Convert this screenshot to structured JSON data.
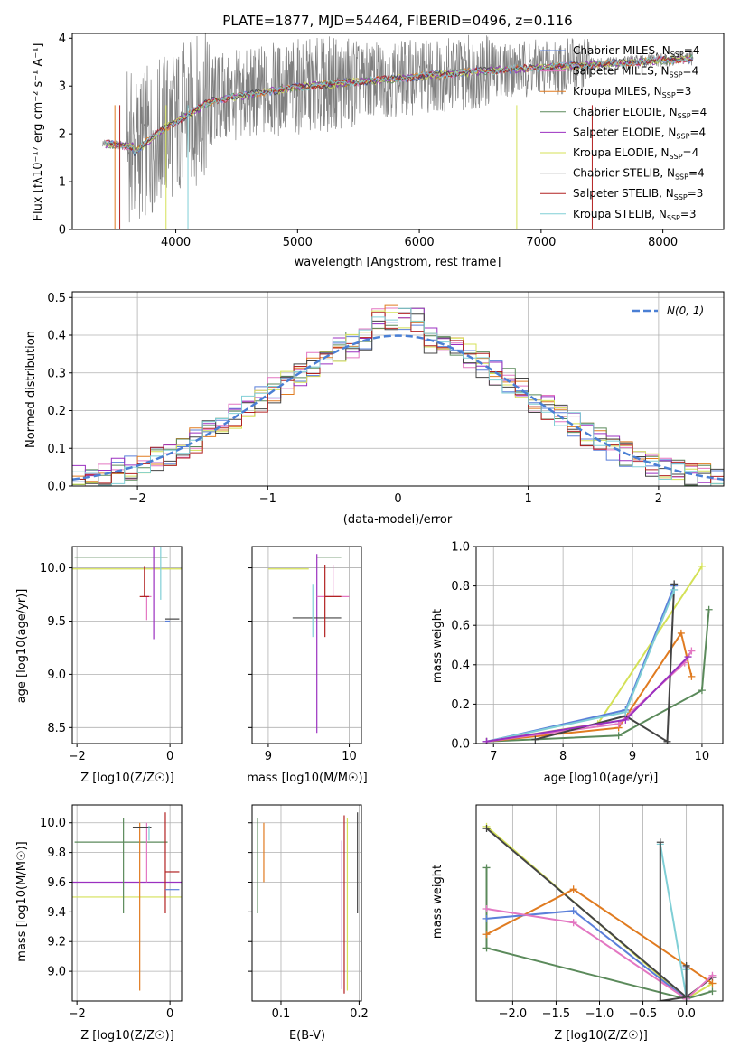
{
  "colors": {
    "chabrier_miles": "#5a7fd9",
    "salpeter_miles": "#e377c2",
    "kroupa_miles": "#e07b20",
    "chabrier_elodie": "#5b8a5b",
    "salpeter_elodie": "#9b30c0",
    "kroupa_elodie": "#d4e157",
    "chabrier_stelib": "#444444",
    "salpeter_stelib": "#b22222",
    "kroupa_stelib": "#80cfd6",
    "gaussian": "#4a7fd4"
  },
  "chart_data": [
    {
      "id": "spectrum",
      "type": "line",
      "title": "PLATE=1877, MJD=54464, FIBERID=0496, z=0.116",
      "xlabel": "wavelength [Angstrom, rest frame]",
      "ylabel": "Flux [fλ10⁻¹⁷ erg cm⁻² s⁻¹ A⁻¹]",
      "xlim": [
        3150,
        8500
      ],
      "ylim": [
        0,
        4.1
      ],
      "xticks": [
        4000,
        5000,
        6000,
        7000,
        8000
      ],
      "yticks": [
        0,
        1,
        2,
        3,
        4
      ],
      "spectrum_range": [
        3400,
        8250
      ],
      "legend": [
        {
          "key": "chabrier_miles",
          "text": "Chabrier MILES, N",
          "n": "4"
        },
        {
          "key": "salpeter_miles",
          "text": "Salpeter MILES, N",
          "n": "4"
        },
        {
          "key": "kroupa_miles",
          "text": "Kroupa MILES, N",
          "n": "3"
        },
        {
          "key": "chabrier_elodie",
          "text": "Chabrier ELODIE, N",
          "n": "4"
        },
        {
          "key": "salpeter_elodie",
          "text": "Salpeter ELODIE, N",
          "n": "4"
        },
        {
          "key": "kroupa_elodie",
          "text": "Kroupa ELODIE, N",
          "n": "4"
        },
        {
          "key": "chabrier_stelib",
          "text": "Chabrier STELIB, N",
          "n": "4"
        },
        {
          "key": "salpeter_stelib",
          "text": "Salpeter STELIB, N",
          "n": "3"
        },
        {
          "key": "kroupa_stelib",
          "text": "Kroupa STELIB, N",
          "n": "3"
        }
      ],
      "legend_sub": "SSP",
      "legend_placement": "right"
    },
    {
      "id": "hist",
      "type": "line",
      "xlabel": "(data-model)/error",
      "ylabel": "Normed distribution",
      "xlim": [
        -2.5,
        2.5
      ],
      "ylim": [
        0,
        0.515
      ],
      "xticks": [
        -2,
        -1,
        0,
        1,
        2
      ],
      "yticks": [
        0.0,
        0.1,
        0.2,
        0.3,
        0.4,
        0.5
      ],
      "gaussian_label": "N(0, 1)",
      "legend_placement": "top-right",
      "grid": true,
      "bin_width": 0.1
    },
    {
      "id": "age_vs_z",
      "type": "scatter",
      "xlabel": "Z [log10(Z/Z☉)]",
      "ylabel": "age  [log10(age/yr)]",
      "xlim": [
        -2.1,
        0.25
      ],
      "ylim": [
        8.35,
        10.2
      ],
      "xticks": [
        -2,
        0
      ],
      "yticks": [
        8.5,
        9.0,
        9.5,
        10.0
      ],
      "grid": true,
      "points": [
        {
          "key": "chabrier_elodie",
          "x": -1.05,
          "xerr": [
            1.0,
            1.0
          ],
          "y": 10.1,
          "yerr": [
            0.0,
            0.0
          ]
        },
        {
          "key": "kroupa_elodie",
          "x": -0.9,
          "xerr": [
            1.2,
            1.2
          ],
          "y": 9.99,
          "yerr": [
            0.0,
            0.0
          ]
        },
        {
          "key": "salpeter_miles",
          "x": -0.5,
          "xerr": [
            0.1,
            0.1
          ],
          "y": 9.73,
          "yerr": [
            0.22,
            0.0
          ]
        },
        {
          "key": "salpeter_stelib",
          "x": -0.55,
          "xerr": [
            0.1,
            0.1
          ],
          "y": 9.73,
          "yerr": [
            0.0,
            0.28
          ]
        },
        {
          "key": "salpeter_elodie",
          "x": -0.35,
          "xerr": [
            0.0,
            0.0
          ],
          "y": 9.73,
          "yerr": [
            0.4,
            1.28
          ]
        },
        {
          "key": "chabrier_stelib",
          "x": -0.1,
          "xerr": [
            0.0,
            0.3
          ],
          "y": 9.52,
          "yerr": [
            0.0,
            0.0
          ]
        },
        {
          "key": "chabrier_miles",
          "x": -0.1,
          "xerr": [
            0.0,
            0.1
          ],
          "y": 9.5,
          "yerr": [
            0.0,
            0.0
          ]
        },
        {
          "key": "kroupa_stelib",
          "x": -0.2,
          "xerr": [
            0.0,
            0.0
          ],
          "y": 9.9,
          "yerr": [
            0.2,
            0.55
          ]
        }
      ]
    },
    {
      "id": "age_vs_mass",
      "type": "scatter",
      "xlabel": "mass [log10(M/M☉)]",
      "xlim": [
        8.8,
        10.15
      ],
      "ylim": [
        8.35,
        10.2
      ],
      "xticks": [
        9,
        10
      ],
      "yticks": [
        8.5,
        9.0,
        9.5,
        10.0
      ],
      "grid": true,
      "points": [
        {
          "key": "kroupa_elodie",
          "x": 9.5,
          "xerr": [
            0.5,
            0.0
          ],
          "y": 9.99,
          "yerr": [
            0.0,
            0.0
          ]
        },
        {
          "key": "chabrier_elodie",
          "x": 9.6,
          "xerr": [
            0.0,
            0.3
          ],
          "y": 10.1,
          "yerr": [
            0.0,
            0.0
          ]
        },
        {
          "key": "salpeter_elodie",
          "x": 9.6,
          "xerr": [
            0.0,
            0.0
          ],
          "y": 9.73,
          "yerr": [
            1.28,
            0.4
          ]
        },
        {
          "key": "salpeter_miles",
          "x": 9.8,
          "xerr": [
            0.2,
            0.2
          ],
          "y": 9.73,
          "yerr": [
            0.0,
            0.3
          ]
        },
        {
          "key": "chabrier_stelib",
          "x": 9.6,
          "xerr": [
            0.3,
            0.3
          ],
          "y": 9.53,
          "yerr": [
            0.0,
            0.0
          ]
        },
        {
          "key": "salpeter_stelib",
          "x": 9.7,
          "xerr": [
            0.0,
            0.2
          ],
          "y": 9.73,
          "yerr": [
            0.38,
            0.3
          ]
        },
        {
          "key": "kroupa_stelib",
          "x": 9.55,
          "xerr": [
            0.0,
            0.0
          ],
          "y": 9.85,
          "yerr": [
            0.5,
            0.0
          ]
        }
      ]
    },
    {
      "id": "weight_vs_age",
      "type": "line",
      "xlabel": "age  [log10(age/yr)]",
      "ylabel": "mass weight",
      "xlim": [
        6.75,
        10.3
      ],
      "ylim": [
        0,
        1.0
      ],
      "xticks": [
        7,
        8,
        9,
        10
      ],
      "yticks": [
        0.0,
        0.2,
        0.4,
        0.6,
        0.8,
        1.0
      ],
      "grid": true,
      "series": [
        {
          "key": "chabrier_elodie",
          "x": [
            6.9,
            8.8,
            10.0,
            10.1
          ],
          "y": [
            0.01,
            0.04,
            0.27,
            0.68
          ]
        },
        {
          "key": "kroupa_elodie",
          "x": [
            6.9,
            8.5,
            10.0
          ],
          "y": [
            0.01,
            0.1,
            0.9
          ]
        },
        {
          "key": "chabrier_miles",
          "x": [
            6.9,
            8.9,
            9.6
          ],
          "y": [
            0.01,
            0.17,
            0.8
          ]
        },
        {
          "key": "kroupa_miles",
          "x": [
            6.9,
            8.8,
            9.7,
            9.85
          ],
          "y": [
            0.01,
            0.08,
            0.56,
            0.34
          ]
        },
        {
          "key": "salpeter_miles",
          "x": [
            6.9,
            8.8,
            9.75,
            9.85
          ],
          "y": [
            0.01,
            0.1,
            0.41,
            0.47
          ]
        },
        {
          "key": "chabrier_stelib",
          "x": [
            7.6,
            8.9,
            9.5,
            9.6
          ],
          "y": [
            0.02,
            0.14,
            0.01,
            0.81
          ]
        },
        {
          "key": "kroupa_stelib",
          "x": [
            6.9,
            8.9,
            9.6
          ],
          "y": [
            0.01,
            0.16,
            0.78
          ]
        },
        {
          "key": "salpeter_elodie",
          "x": [
            6.9,
            8.9,
            9.8
          ],
          "y": [
            0.01,
            0.12,
            0.44
          ]
        }
      ]
    },
    {
      "id": "mass_vs_z",
      "type": "scatter",
      "xlabel": "Z [log10(Z/Z☉)]",
      "ylabel": "mass [log10(M/M☉)]",
      "xlim": [
        -2.1,
        0.25
      ],
      "ylim": [
        8.8,
        10.12
      ],
      "xticks": [
        -2,
        0
      ],
      "yticks": [
        9.0,
        9.2,
        9.4,
        9.6,
        9.8,
        10.0
      ],
      "grid": true,
      "points": [
        {
          "key": "chabrier_elodie",
          "x": -1.05,
          "xerr": [
            1.0,
            1.0
          ],
          "y": 9.87,
          "yerr": [
            0.0,
            0.0
          ]
        },
        {
          "key": "kroupa_elodie",
          "x": -0.9,
          "xerr": [
            1.2,
            1.2
          ],
          "y": 9.5,
          "yerr": [
            0.0,
            0.0
          ]
        },
        {
          "key": "salpeter_elodie",
          "x": -0.9,
          "xerr": [
            1.2,
            1.2
          ],
          "y": 9.6,
          "yerr": [
            0.0,
            0.0
          ]
        },
        {
          "key": "chabrier_elodie",
          "x": -1.0,
          "xerr": [
            0.0,
            0.0
          ],
          "y": 9.87,
          "yerr": [
            0.48,
            0.16
          ]
        },
        {
          "key": "salpeter_miles",
          "x": -0.5,
          "xerr": [
            0.0,
            0.0
          ],
          "y": 9.85,
          "yerr": [
            0.25,
            0.15
          ]
        },
        {
          "key": "kroupa_miles",
          "x": -0.65,
          "xerr": [
            0.0,
            0.0
          ],
          "y": 9.97,
          "yerr": [
            1.1,
            0.03
          ]
        },
        {
          "key": "chabrier_stelib",
          "x": -0.6,
          "xerr": [
            0.2,
            0.2
          ],
          "y": 9.97,
          "yerr": [
            0.0,
            0.0
          ]
        },
        {
          "key": "kroupa_stelib",
          "x": -0.45,
          "xerr": [
            0.0,
            0.0
          ],
          "y": 9.88,
          "yerr": [
            0.0,
            0.1
          ]
        },
        {
          "key": "salpeter_stelib",
          "x": -0.1,
          "xerr": [
            0.0,
            0.3
          ],
          "y": 9.67,
          "yerr": [
            0.0,
            0.0
          ]
        },
        {
          "key": "salpeter_stelib",
          "x": -0.1,
          "xerr": [
            0.0,
            0.0
          ],
          "y": 9.97,
          "yerr": [
            0.58,
            0.1
          ]
        },
        {
          "key": "chabrier_miles",
          "x": -0.1,
          "xerr": [
            0.0,
            0.3
          ],
          "y": 9.55,
          "yerr": [
            0.0,
            0.0
          ]
        }
      ]
    },
    {
      "id": "mass_vs_ebv",
      "type": "scatter",
      "xlabel": "E(B-V)",
      "xlim": [
        0.063,
        0.203
      ],
      "ylim": [
        8.8,
        10.12
      ],
      "xticks": [
        0.1,
        0.2
      ],
      "yticks": [
        9.0,
        9.2,
        9.4,
        9.6,
        9.8,
        10.0
      ],
      "grid": true,
      "points": [
        {
          "key": "chabrier_elodie",
          "x": 0.07,
          "xerr": [
            0.0,
            0.0
          ],
          "y": 9.71,
          "yerr": [
            0.32,
            0.32
          ]
        },
        {
          "key": "kroupa_miles",
          "x": 0.078,
          "xerr": [
            0.0,
            0.0
          ],
          "y": 9.8,
          "yerr": [
            0.2,
            0.2
          ]
        },
        {
          "key": "salpeter_elodie",
          "x": 0.178,
          "xerr": [
            0.0,
            0.0
          ],
          "y": 9.38,
          "yerr": [
            0.5,
            0.5
          ]
        },
        {
          "key": "salpeter_stelib",
          "x": 0.181,
          "xerr": [
            0.0,
            0.0
          ],
          "y": 9.45,
          "yerr": [
            0.6,
            0.6
          ]
        },
        {
          "key": "kroupa_elodie",
          "x": 0.185,
          "xerr": [
            0.0,
            0.0
          ],
          "y": 9.45,
          "yerr": [
            0.58,
            0.58
          ]
        },
        {
          "key": "chabrier_stelib",
          "x": 0.198,
          "xerr": [
            0.0,
            0.0
          ],
          "y": 9.73,
          "yerr": [
            0.34,
            0.34
          ]
        }
      ]
    },
    {
      "id": "weight_vs_z",
      "type": "line",
      "xlabel": "Z [log10(Z/Z☉)]",
      "ylabel": "mass weight",
      "xlim": [
        -2.42,
        0.42
      ],
      "ylim": [
        0,
        1.0
      ],
      "xticks": [
        -2.0,
        -1.5,
        -1.0,
        -0.5,
        0.0
      ],
      "grid": true,
      "series": [
        {
          "key": "kroupa_elodie",
          "x": [
            -2.3,
            0.0,
            0.3
          ],
          "y": [
            0.89,
            0.01,
            0.09
          ]
        },
        {
          "key": "chabrier_stelib",
          "x": [
            -2.3,
            0.0,
            0.3
          ],
          "y": [
            0.88,
            0.02,
            0.12
          ]
        },
        {
          "key": "chabrier_elodie",
          "x": [
            -2.3,
            -2.3,
            0.0,
            0.3
          ],
          "y": [
            0.68,
            0.27,
            0.01,
            0.05
          ]
        },
        {
          "key": "kroupa_miles",
          "x": [
            -2.3,
            -1.3,
            0.3
          ],
          "y": [
            0.34,
            0.57,
            0.09
          ]
        },
        {
          "key": "chabrier_miles",
          "x": [
            -2.3,
            -1.3,
            0.0,
            0.0
          ],
          "y": [
            0.42,
            0.46,
            0.01,
            0.17
          ]
        },
        {
          "key": "salpeter_miles",
          "x": [
            -2.3,
            -1.3,
            0.0,
            0.3
          ],
          "y": [
            0.47,
            0.4,
            0.01,
            0.13
          ]
        },
        {
          "key": "kroupa_stelib",
          "x": [
            -0.3,
            0.0,
            0.0
          ],
          "y": [
            0.8,
            0.02,
            0.16
          ]
        },
        {
          "key": "chabrier_stelib",
          "x": [
            -0.3,
            -0.3,
            0.0,
            0.0
          ],
          "y": [
            0.81,
            0.0,
            0.02,
            0.18
          ]
        }
      ]
    }
  ]
}
